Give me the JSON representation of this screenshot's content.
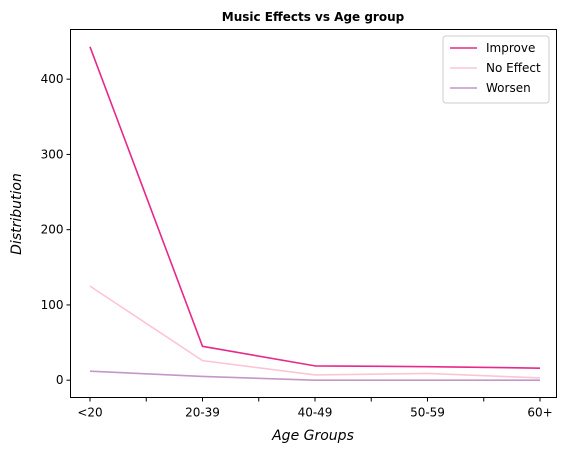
{
  "chart_data": {
    "type": "line",
    "title": "Music Effects vs Age group",
    "xlabel": "Age Groups",
    "ylabel": "Distribution",
    "categories": [
      "<20",
      "20-39",
      "40-49",
      "50-59",
      "60+"
    ],
    "y_ticks": [
      0,
      100,
      200,
      300,
      400
    ],
    "ylim": [
      -23,
      466
    ],
    "grid": false,
    "legend_position": "top-right",
    "series": [
      {
        "name": "Improve",
        "color": "#e7298a",
        "values": [
          443,
          45,
          19,
          18,
          16
        ]
      },
      {
        "name": "No Effect",
        "color": "#fcc5d5",
        "values": [
          125,
          26,
          7,
          9,
          3
        ]
      },
      {
        "name": "Worsen",
        "color": "#c497c8",
        "values": [
          12,
          5,
          0,
          0,
          0
        ]
      }
    ]
  }
}
